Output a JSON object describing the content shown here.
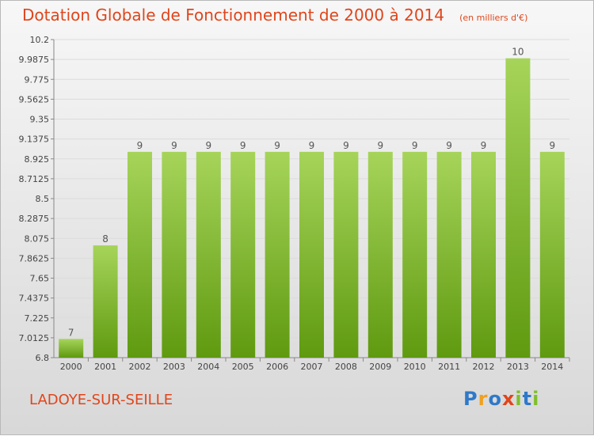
{
  "title": "Dotation Globale de Fonctionnement de 2000 à 2014",
  "unit_note": "(en milliers d'€)",
  "commune": "LADOYE-SUR-SEILLE",
  "logo": {
    "letters": [
      "P",
      "r",
      "o",
      "x",
      "i",
      "t",
      "i"
    ],
    "colors": [
      "#2e79c9",
      "#f0a020",
      "#2e79c9",
      "#e0451b",
      "#7fbf2a",
      "#2e79c9",
      "#7fbf2a"
    ]
  },
  "colors": {
    "title": "#e0451b",
    "bar_light": "#a6d45a",
    "bar_dark": "#5f9a10"
  },
  "chart_data": {
    "type": "bar",
    "title": "Dotation Globale de Fonctionnement de 2000 à 2014",
    "subtitle": "(en milliers d'€)",
    "categories": [
      "2000",
      "2001",
      "2002",
      "2003",
      "2004",
      "2005",
      "2006",
      "2007",
      "2008",
      "2009",
      "2010",
      "2011",
      "2012",
      "2013",
      "2014"
    ],
    "values": [
      7,
      8,
      9,
      9,
      9,
      9,
      9,
      9,
      9,
      9,
      9,
      9,
      9,
      10,
      9
    ],
    "data_labels": [
      "7",
      "8",
      "9",
      "9",
      "9",
      "9",
      "9",
      "9",
      "9",
      "9",
      "9",
      "9",
      "9",
      "10",
      "9"
    ],
    "ylim": [
      6.8,
      10.2
    ],
    "yticks": [
      "6.8",
      "7.0125",
      "7.225",
      "7.4375",
      "7.65",
      "7.8625",
      "8.075",
      "8.2875",
      "8.5",
      "8.7125",
      "8.925",
      "9.1375",
      "9.35",
      "9.5625",
      "9.775",
      "9.9875",
      "10.2"
    ],
    "grid": true,
    "legend": "none"
  }
}
